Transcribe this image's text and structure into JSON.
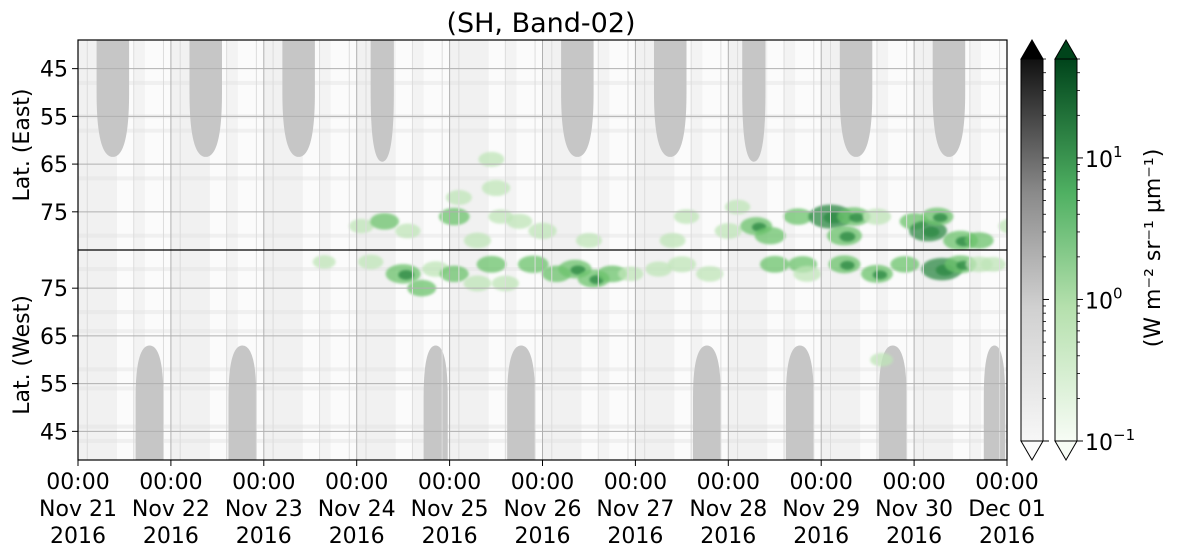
{
  "chart_data": {
    "type": "heatmap",
    "title": "(SH, Band-02)",
    "x_ticks": [
      {
        "time": "00:00",
        "date": "Nov 21",
        "year": "2016"
      },
      {
        "time": "00:00",
        "date": "Nov 22",
        "year": "2016"
      },
      {
        "time": "00:00",
        "date": "Nov 23",
        "year": "2016"
      },
      {
        "time": "00:00",
        "date": "Nov 24",
        "year": "2016"
      },
      {
        "time": "00:00",
        "date": "Nov 25",
        "year": "2016"
      },
      {
        "time": "00:00",
        "date": "Nov 26",
        "year": "2016"
      },
      {
        "time": "00:00",
        "date": "Nov 27",
        "year": "2016"
      },
      {
        "time": "00:00",
        "date": "Nov 28",
        "year": "2016"
      },
      {
        "time": "00:00",
        "date": "Nov 29",
        "year": "2016"
      },
      {
        "time": "00:00",
        "date": "Nov 30",
        "year": "2016"
      },
      {
        "time": "00:00",
        "date": "Dec 01",
        "year": "2016"
      }
    ],
    "panels": [
      {
        "ylabel": "Lat. (East)",
        "ticks": [
          "45",
          "55",
          "65",
          "75"
        ],
        "tick_values": [
          45,
          55,
          65,
          75
        ],
        "range": [
          39,
          83
        ],
        "direction": "increasing-down"
      },
      {
        "ylabel": "Lat. (West)",
        "ticks": [
          "75",
          "65",
          "55",
          "45"
        ],
        "tick_values": [
          75,
          65,
          55,
          45
        ],
        "range": [
          83,
          39
        ],
        "direction": "decreasing-down"
      }
    ],
    "colorbar": {
      "label": "(W m⁻² sr⁻¹ μm⁻¹)",
      "scale": "log",
      "ticks": [
        {
          "value": 0.1,
          "base": "10",
          "exp": "−1"
        },
        {
          "value": 1,
          "base": "10",
          "exp": "0"
        },
        {
          "value": 10,
          "base": "10",
          "exp": "1"
        }
      ],
      "range": [
        0.1,
        50
      ],
      "colormaps": [
        "Greys",
        "Greens"
      ],
      "extend": "both"
    },
    "grid": true,
    "colors": {
      "coverage_gap": "#c6c6c6",
      "green_light": "#bfe5b8",
      "green_mid": "#6cc36c",
      "green_dark": "#2d8a45",
      "gray_high": "#111111",
      "green_high": "#00441b"
    },
    "aurora_clusters": [
      {
        "t": 2.65,
        "lat": 80.5,
        "side": "west",
        "v": 0.5
      },
      {
        "t": 3.05,
        "lat": 78,
        "side": "east",
        "v": 0.8
      },
      {
        "t": 3.3,
        "lat": 77,
        "side": "east",
        "v": 1.5
      },
      {
        "t": 3.55,
        "lat": 79,
        "side": "east",
        "v": 0.9
      },
      {
        "t": 3.15,
        "lat": 80.5,
        "side": "west",
        "v": 0.9
      },
      {
        "t": 3.5,
        "lat": 78,
        "side": "west",
        "v": 2.5
      },
      {
        "t": 3.7,
        "lat": 75,
        "side": "west",
        "v": 1.5
      },
      {
        "t": 3.85,
        "lat": 79,
        "side": "west",
        "v": 1.2
      },
      {
        "t": 4.05,
        "lat": 76,
        "side": "east",
        "v": 1.8
      },
      {
        "t": 4.1,
        "lat": 72,
        "side": "east",
        "v": 1.0
      },
      {
        "t": 4.05,
        "lat": 78,
        "side": "west",
        "v": 1.5
      },
      {
        "t": 4.3,
        "lat": 76,
        "side": "west",
        "v": 1.3
      },
      {
        "t": 4.3,
        "lat": 81,
        "side": "east",
        "v": 1.2
      },
      {
        "t": 4.55,
        "lat": 76,
        "side": "east",
        "v": 0.8
      },
      {
        "t": 4.5,
        "lat": 70,
        "side": "east",
        "v": 1.4
      },
      {
        "t": 4.45,
        "lat": 64,
        "side": "east",
        "v": 1.0
      },
      {
        "t": 4.45,
        "lat": 80,
        "side": "west",
        "v": 1.6
      },
      {
        "t": 4.6,
        "lat": 76,
        "side": "west",
        "v": 1.2
      },
      {
        "t": 4.75,
        "lat": 77,
        "side": "east",
        "v": 1.0
      },
      {
        "t": 4.9,
        "lat": 80,
        "side": "west",
        "v": 1.8
      },
      {
        "t": 5.0,
        "lat": 79,
        "side": "east",
        "v": 1.4
      },
      {
        "t": 5.15,
        "lat": 78,
        "side": "west",
        "v": 1.5
      },
      {
        "t": 5.35,
        "lat": 79,
        "side": "west",
        "v": 2.2
      },
      {
        "t": 5.55,
        "lat": 77,
        "side": "west",
        "v": 2.0
      },
      {
        "t": 5.75,
        "lat": 78,
        "side": "west",
        "v": 1.6
      },
      {
        "t": 5.5,
        "lat": 81,
        "side": "east",
        "v": 1.0
      },
      {
        "t": 5.95,
        "lat": 78,
        "side": "west",
        "v": 0.9
      },
      {
        "t": 6.25,
        "lat": 79,
        "side": "west",
        "v": 1.1
      },
      {
        "t": 6.5,
        "lat": 80,
        "side": "west",
        "v": 1.4
      },
      {
        "t": 6.4,
        "lat": 81,
        "side": "east",
        "v": 1.0
      },
      {
        "t": 6.55,
        "lat": 76,
        "side": "east",
        "v": 0.9
      },
      {
        "t": 6.8,
        "lat": 78,
        "side": "west",
        "v": 1.2
      },
      {
        "t": 7.0,
        "lat": 79,
        "side": "east",
        "v": 1.2
      },
      {
        "t": 7.1,
        "lat": 74,
        "side": "east",
        "v": 0.9
      },
      {
        "t": 7.3,
        "lat": 78,
        "side": "east",
        "v": 2.0
      },
      {
        "t": 7.45,
        "lat": 80,
        "side": "east",
        "v": 1.8
      },
      {
        "t": 7.5,
        "lat": 80,
        "side": "west",
        "v": 1.6
      },
      {
        "t": 7.75,
        "lat": 76,
        "side": "east",
        "v": 1.5
      },
      {
        "t": 7.8,
        "lat": 80,
        "side": "west",
        "v": 1.5
      },
      {
        "t": 7.85,
        "lat": 78,
        "side": "west",
        "v": 1.3
      },
      {
        "t": 8.1,
        "lat": 76,
        "side": "east",
        "v": 4.0
      },
      {
        "t": 8.25,
        "lat": 80,
        "side": "east",
        "v": 2.5
      },
      {
        "t": 8.35,
        "lat": 76,
        "side": "east",
        "v": 2.2
      },
      {
        "t": 8.25,
        "lat": 80,
        "side": "west",
        "v": 2.0
      },
      {
        "t": 8.6,
        "lat": 78,
        "side": "west",
        "v": 2.0
      },
      {
        "t": 8.6,
        "lat": 76,
        "side": "east",
        "v": 1.4
      },
      {
        "t": 8.9,
        "lat": 80,
        "side": "west",
        "v": 1.5
      },
      {
        "t": 9.0,
        "lat": 77,
        "side": "east",
        "v": 1.5
      },
      {
        "t": 9.15,
        "lat": 79,
        "side": "east",
        "v": 3.0
      },
      {
        "t": 9.25,
        "lat": 76,
        "side": "east",
        "v": 2.0
      },
      {
        "t": 9.3,
        "lat": 79,
        "side": "west",
        "v": 3.5
      },
      {
        "t": 9.5,
        "lat": 81,
        "side": "east",
        "v": 2.5
      },
      {
        "t": 9.5,
        "lat": 80,
        "side": "west",
        "v": 2.0
      },
      {
        "t": 9.7,
        "lat": 81,
        "side": "east",
        "v": 1.5
      },
      {
        "t": 9.7,
        "lat": 80,
        "side": "west",
        "v": 1.2
      },
      {
        "t": 9.85,
        "lat": 80,
        "side": "west",
        "v": 0.9
      },
      {
        "t": 10.05,
        "lat": 78,
        "side": "east",
        "v": 1.1
      },
      {
        "t": 10.2,
        "lat": 78,
        "side": "east",
        "v": 1.5
      },
      {
        "t": 10.2,
        "lat": 79,
        "side": "west",
        "v": 1.5
      },
      {
        "t": 10.4,
        "lat": 81,
        "side": "east",
        "v": 5.0
      },
      {
        "t": 10.45,
        "lat": 80,
        "side": "west",
        "v": 3.5
      },
      {
        "t": 10.4,
        "lat": 76,
        "side": "east",
        "v": 1.0
      },
      {
        "t": 8.65,
        "lat": 60,
        "side": "west",
        "v": 0.5
      }
    ]
  }
}
